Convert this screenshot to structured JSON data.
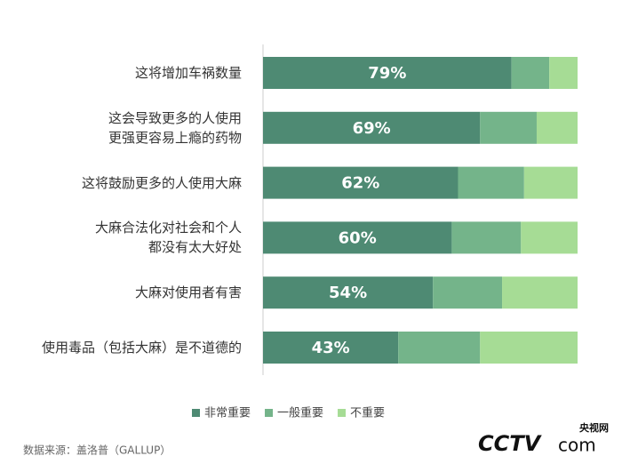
{
  "chart_data": {
    "type": "stacked_bar_horizontal",
    "categories": [
      "这将增加车祸数量",
      "这会导致更多的人使用\n更强更容易上瘾的药物",
      "这将鼓励更多的人使用大麻",
      "大麻合法化对社会和个人\n都没有太大好处",
      "大麻对使用者有害",
      "使用毒品（包括大麻）是不道德的"
    ],
    "series": [
      {
        "name": "非常重要",
        "color": "#4e8a73",
        "values": [
          79,
          69,
          62,
          60,
          54,
          43
        ],
        "value_labels": [
          "79%",
          "69%",
          "62%",
          "60%",
          "54%",
          "43%"
        ]
      },
      {
        "name": "一般重要",
        "color": "#74b48a",
        "values": [
          12,
          18,
          21,
          22,
          22,
          26
        ]
      },
      {
        "name": "不重要",
        "color": "#a6dc95",
        "values": [
          9,
          13,
          17,
          18,
          24,
          31
        ]
      }
    ],
    "xlim": [
      0,
      100
    ]
  },
  "source": "数据来源：盖洛普（GALLUP）",
  "watermark": [
    "央视网",
    "CCTV",
    "com"
  ]
}
